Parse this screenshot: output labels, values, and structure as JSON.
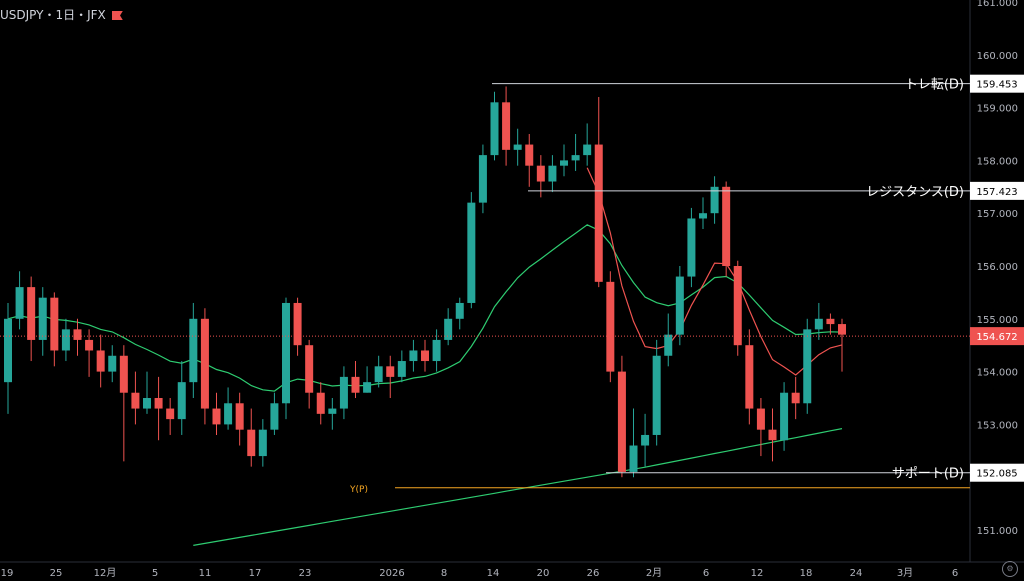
{
  "title": "USDJPY・1日・JFX",
  "settings_icon": "gear-icon",
  "colors": {
    "up": "#26a69a",
    "down": "#ef5350",
    "ema_fast": "#ef5350",
    "ema_mid": "#2ecc71",
    "ema_slow": "#2ecc71",
    "pivot": "#f5a623",
    "grid": "#1a1a1a"
  },
  "chart_data": {
    "type": "candlestick",
    "title": "USDJPY・1日・JFX",
    "ylim": [
      150.5,
      161.0
    ],
    "y_ticks": [
      "151.000",
      "152.000",
      "153.000",
      "154.000",
      "155.000",
      "156.000",
      "157.000",
      "158.000",
      "159.000",
      "160.000",
      "161.000"
    ],
    "x_ticks": [
      "19",
      "25",
      "12月",
      "5",
      "11",
      "17",
      "23",
      "2026",
      "8",
      "14",
      "20",
      "26",
      "2月",
      "6",
      "12",
      "18",
      "24",
      "3月",
      "6"
    ],
    "current_price": "154.672",
    "candles": [
      [
        153.8,
        155.0,
        155.3,
        153.2
      ],
      [
        155.0,
        155.6,
        155.9,
        154.8
      ],
      [
        155.6,
        154.6,
        155.8,
        154.2
      ],
      [
        154.6,
        155.4,
        155.6,
        154.3
      ],
      [
        155.4,
        154.4,
        155.5,
        154.1
      ],
      [
        154.4,
        154.8,
        155.0,
        154.2
      ],
      [
        154.8,
        154.6,
        155.0,
        154.3
      ],
      [
        154.6,
        154.4,
        154.8,
        153.9
      ],
      [
        154.4,
        154.0,
        154.7,
        153.7
      ],
      [
        154.0,
        154.3,
        154.5,
        153.8
      ],
      [
        154.3,
        153.6,
        154.5,
        152.3
      ],
      [
        153.6,
        153.3,
        154.0,
        153.0
      ],
      [
        153.3,
        153.5,
        154.0,
        153.2
      ],
      [
        153.5,
        153.3,
        153.9,
        152.7
      ],
      [
        153.3,
        153.1,
        153.5,
        152.8
      ],
      [
        153.1,
        153.8,
        154.2,
        152.8
      ],
      [
        153.8,
        155.0,
        155.3,
        153.5
      ],
      [
        155.0,
        153.3,
        155.2,
        153.0
      ],
      [
        153.3,
        153.0,
        153.6,
        152.8
      ],
      [
        153.0,
        153.4,
        153.7,
        152.9
      ],
      [
        153.4,
        152.9,
        153.6,
        152.6
      ],
      [
        152.9,
        152.4,
        153.3,
        152.2
      ],
      [
        152.4,
        152.9,
        153.1,
        152.2
      ],
      [
        152.9,
        153.4,
        153.6,
        152.8
      ],
      [
        153.4,
        155.3,
        155.4,
        153.1
      ],
      [
        155.3,
        154.5,
        155.4,
        154.3
      ],
      [
        154.5,
        153.6,
        154.6,
        153.3
      ],
      [
        153.6,
        153.2,
        153.8,
        153.0
      ],
      [
        153.2,
        153.3,
        153.5,
        152.9
      ],
      [
        153.3,
        153.9,
        154.1,
        153.1
      ],
      [
        153.9,
        153.6,
        154.2,
        153.5
      ],
      [
        153.6,
        153.8,
        154.1,
        153.6
      ],
      [
        153.8,
        154.1,
        154.3,
        153.7
      ],
      [
        154.1,
        153.9,
        154.3,
        153.5
      ],
      [
        153.9,
        154.2,
        154.4,
        153.8
      ],
      [
        154.2,
        154.4,
        154.6,
        154.0
      ],
      [
        154.4,
        154.2,
        154.6,
        154.0
      ],
      [
        154.2,
        154.6,
        154.8,
        154.0
      ],
      [
        154.6,
        155.0,
        155.2,
        154.5
      ],
      [
        155.0,
        155.3,
        155.4,
        154.8
      ],
      [
        155.3,
        157.2,
        157.4,
        155.2
      ],
      [
        157.2,
        158.1,
        158.3,
        157.0
      ],
      [
        158.1,
        159.1,
        159.3,
        158.0
      ],
      [
        159.1,
        158.2,
        159.4,
        157.9
      ],
      [
        158.2,
        158.3,
        158.6,
        157.9
      ],
      [
        158.3,
        157.9,
        158.5,
        157.5
      ],
      [
        157.9,
        157.6,
        158.1,
        157.3
      ],
      [
        157.6,
        157.9,
        158.1,
        157.4
      ],
      [
        157.9,
        158.0,
        158.3,
        157.7
      ],
      [
        158.0,
        158.1,
        158.5,
        157.8
      ],
      [
        158.1,
        158.3,
        158.7,
        157.9
      ],
      [
        158.3,
        155.7,
        159.2,
        155.6
      ],
      [
        155.7,
        154.0,
        155.9,
        153.8
      ],
      [
        154.0,
        152.1,
        154.3,
        152.0
      ],
      [
        152.1,
        152.6,
        153.3,
        152.0
      ],
      [
        152.6,
        152.8,
        153.2,
        152.2
      ],
      [
        152.8,
        154.3,
        154.6,
        152.6
      ],
      [
        154.3,
        154.7,
        155.1,
        154.1
      ],
      [
        154.7,
        155.8,
        156.0,
        154.5
      ],
      [
        155.8,
        156.9,
        157.1,
        155.6
      ],
      [
        156.9,
        157.0,
        157.3,
        156.7
      ],
      [
        157.0,
        157.5,
        157.7,
        156.8
      ],
      [
        157.5,
        156.0,
        157.6,
        155.8
      ],
      [
        156.0,
        154.5,
        156.1,
        154.3
      ],
      [
        154.5,
        153.3,
        154.8,
        153.0
      ],
      [
        153.3,
        152.9,
        153.5,
        152.4
      ],
      [
        152.9,
        152.7,
        153.3,
        152.3
      ],
      [
        152.7,
        153.6,
        153.8,
        152.5
      ],
      [
        153.6,
        153.4,
        153.9,
        153.1
      ],
      [
        153.4,
        154.8,
        155.0,
        153.2
      ],
      [
        154.8,
        155.0,
        155.3,
        154.6
      ],
      [
        155.0,
        154.9,
        155.1,
        154.7
      ],
      [
        154.9,
        154.7,
        155.0,
        154.0
      ]
    ],
    "levels": [
      {
        "label": "トレ転(D)",
        "value": "159.453",
        "price": 159.453
      },
      {
        "label": "レジスタンス(D)",
        "value": "157.423",
        "price": 157.423
      },
      {
        "label": "サポート(D)",
        "value": "152.085",
        "price": 152.085
      }
    ],
    "pivot_label": "Y(P)",
    "pivot_price": 151.8
  }
}
